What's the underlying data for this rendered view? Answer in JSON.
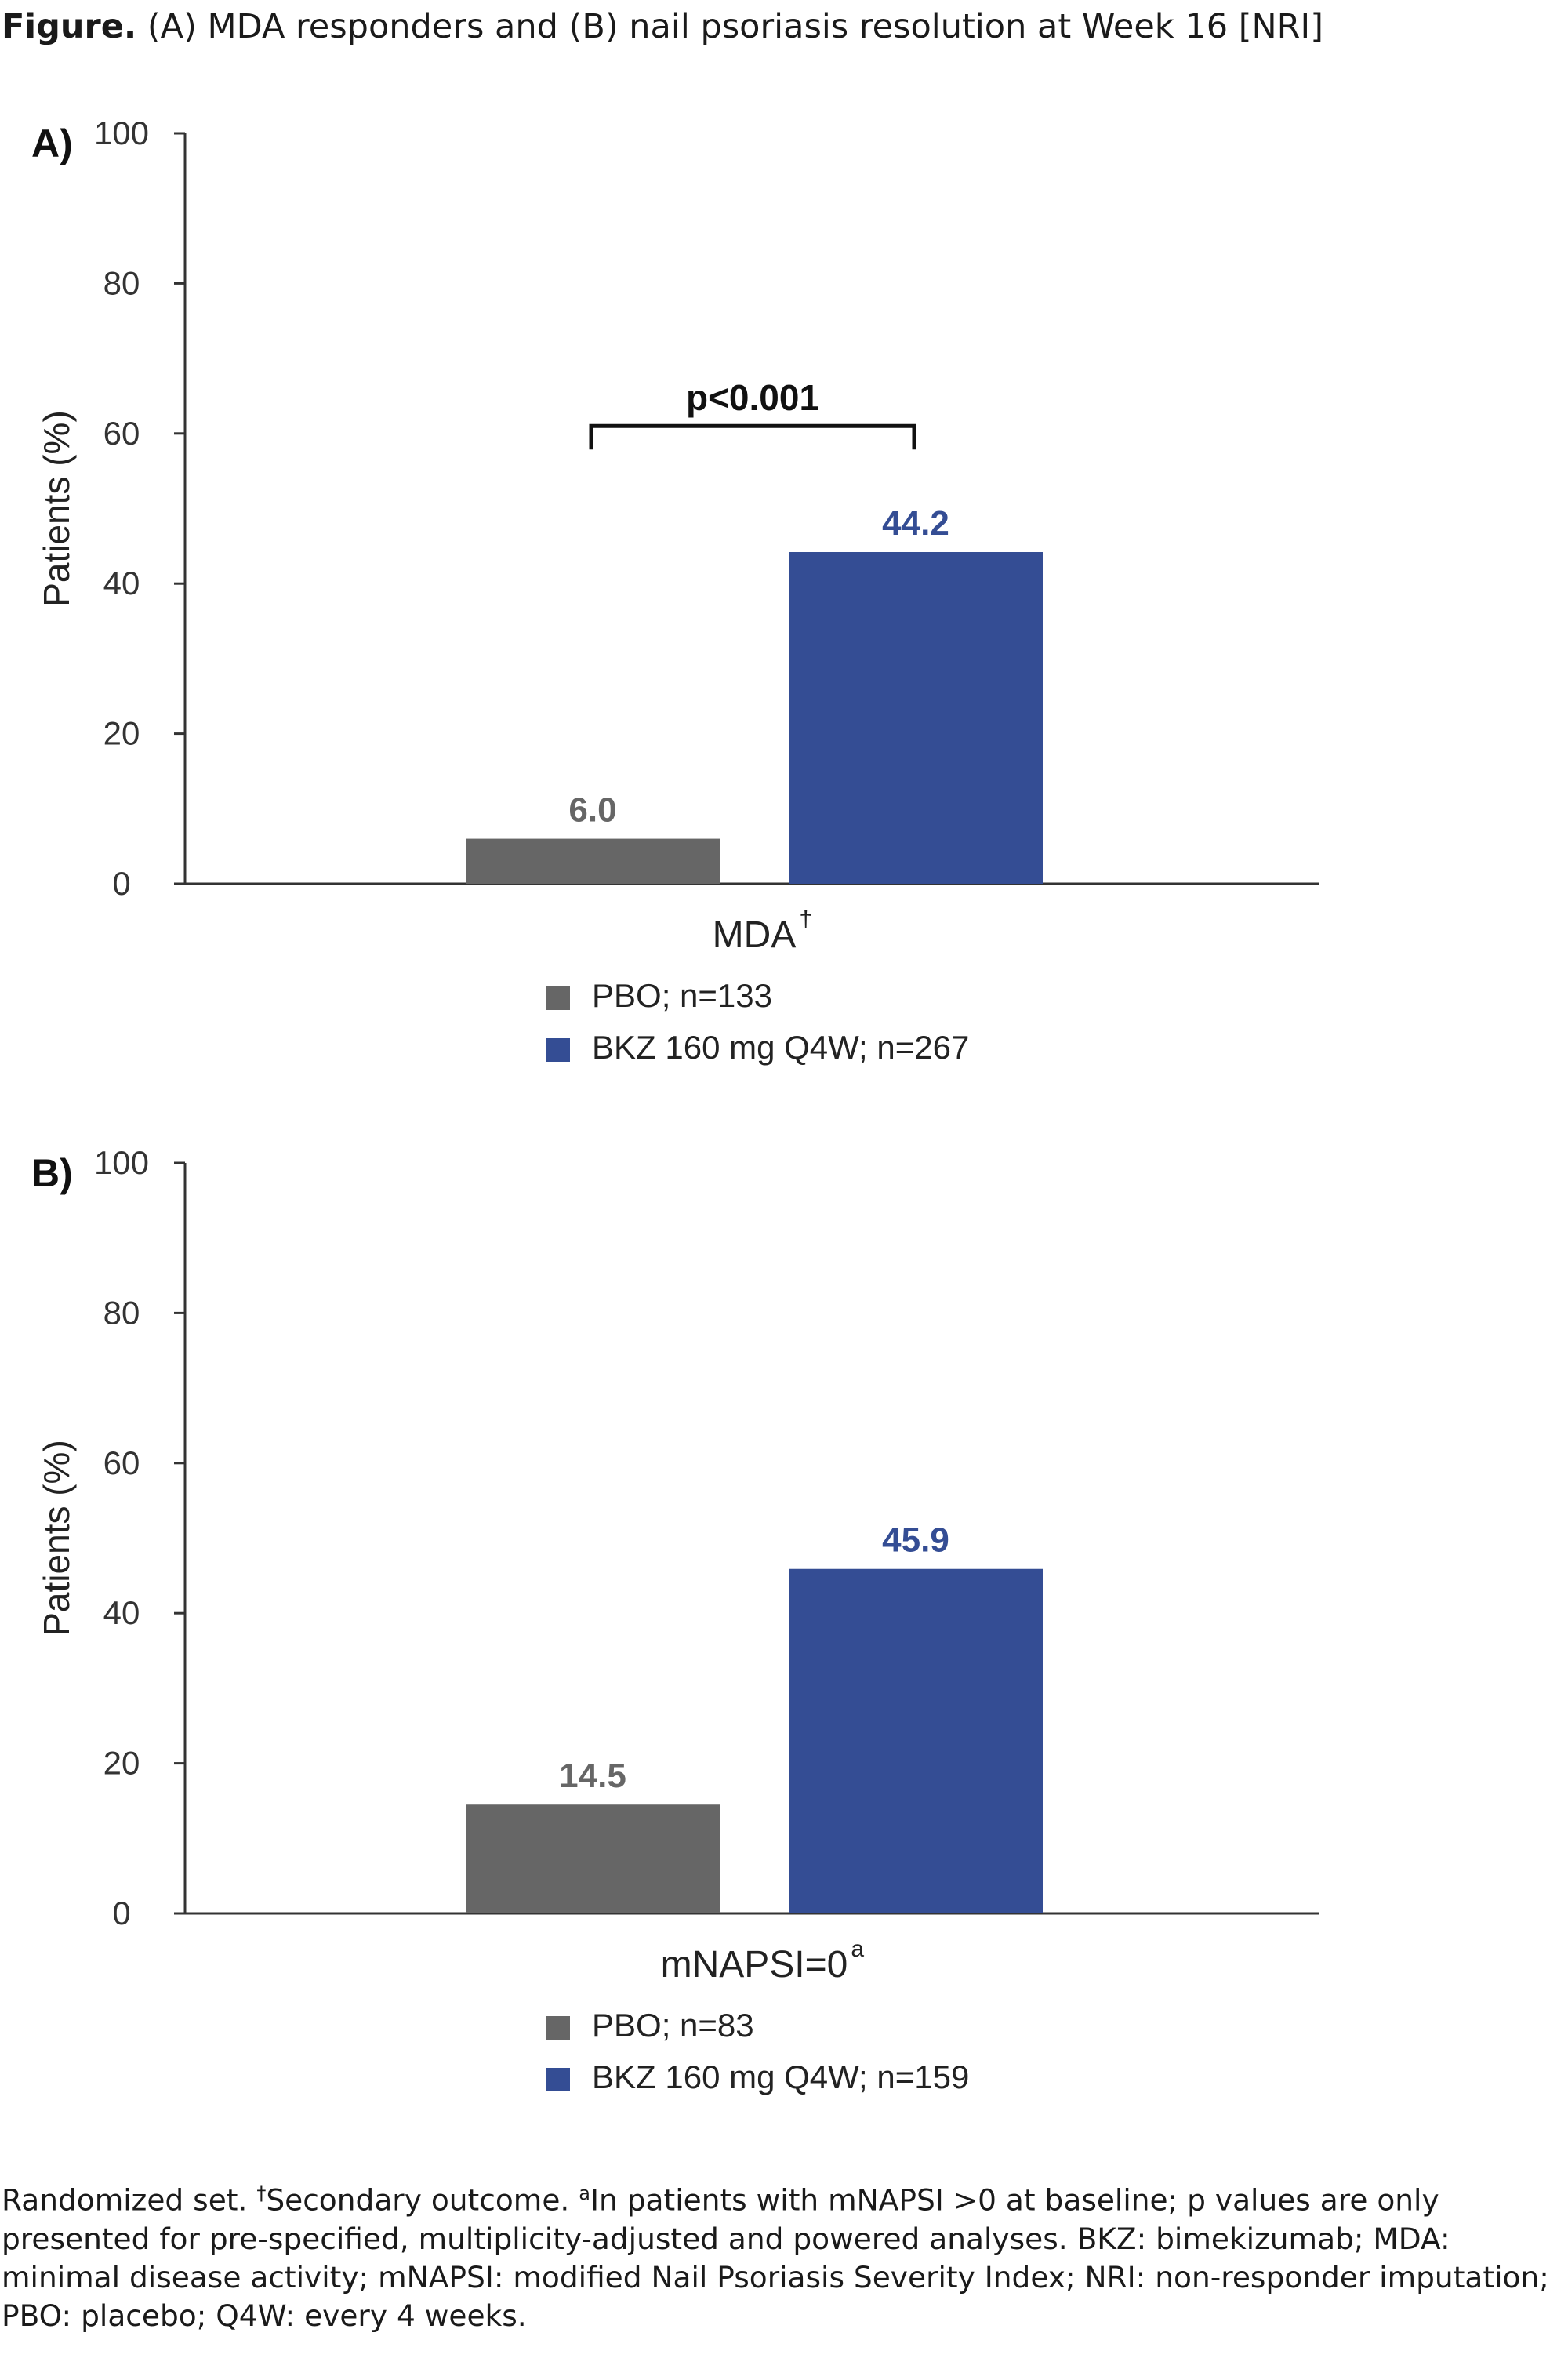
{
  "figure_title": {
    "bold": "Figure.",
    "rest": " (A) MDA responders and (B) nail psoriasis resolution at Week 16 [NRI]"
  },
  "colors": {
    "pbo": "#666666",
    "bkz": "#344d94"
  },
  "chart_data": [
    {
      "type": "bar",
      "panel_label": "A)",
      "title": "",
      "categories": [
        "MDA"
      ],
      "category_superscript": "†",
      "xlabel": "MDA",
      "ylabel": "Patients (%)",
      "ylim": [
        0,
        100
      ],
      "yticks": [
        0,
        20,
        40,
        60,
        80,
        100
      ],
      "series": [
        {
          "name": "PBO; n=133",
          "values": [
            6.0
          ],
          "label": "6.0",
          "color": "#666666"
        },
        {
          "name": "BKZ 160 mg Q4W; n=267",
          "values": [
            44.2
          ],
          "label": "44.2",
          "color": "#344d94"
        }
      ],
      "annotation": {
        "text": "p<0.001",
        "bracket_y": 61
      },
      "legend": [
        "PBO; n=133",
        "BKZ 160 mg Q4W; n=267"
      ]
    },
    {
      "type": "bar",
      "panel_label": "B)",
      "title": "",
      "categories": [
        "mNAPSI=0"
      ],
      "category_superscript": "a",
      "xlabel": "mNAPSI=0",
      "ylabel": "Patients (%)",
      "ylim": [
        0,
        100
      ],
      "yticks": [
        0,
        20,
        40,
        60,
        80,
        100
      ],
      "series": [
        {
          "name": "PBO; n=83",
          "values": [
            14.5
          ],
          "label": "14.5",
          "color": "#666666"
        },
        {
          "name": "BKZ 160 mg Q4W; n=159",
          "values": [
            45.9
          ],
          "label": "45.9",
          "color": "#344d94"
        }
      ],
      "legend": [
        "PBO; n=83",
        "BKZ 160 mg Q4W; n=159"
      ]
    }
  ],
  "footnote": {
    "p1": "Randomized set. ",
    "dagger": "†",
    "p2": "Secondary outcome. ",
    "a": "a",
    "p3": "In patients with mNAPSI >0 at baseline; p values are only presented for pre-specified, multiplicity-adjusted and powered analyses. BKZ: bimekizumab; MDA: minimal disease activity; mNAPSI: modified Nail Psoriasis Severity Index; NRI: non-responder imputation; PBO: placebo; Q4W: every 4 weeks."
  }
}
